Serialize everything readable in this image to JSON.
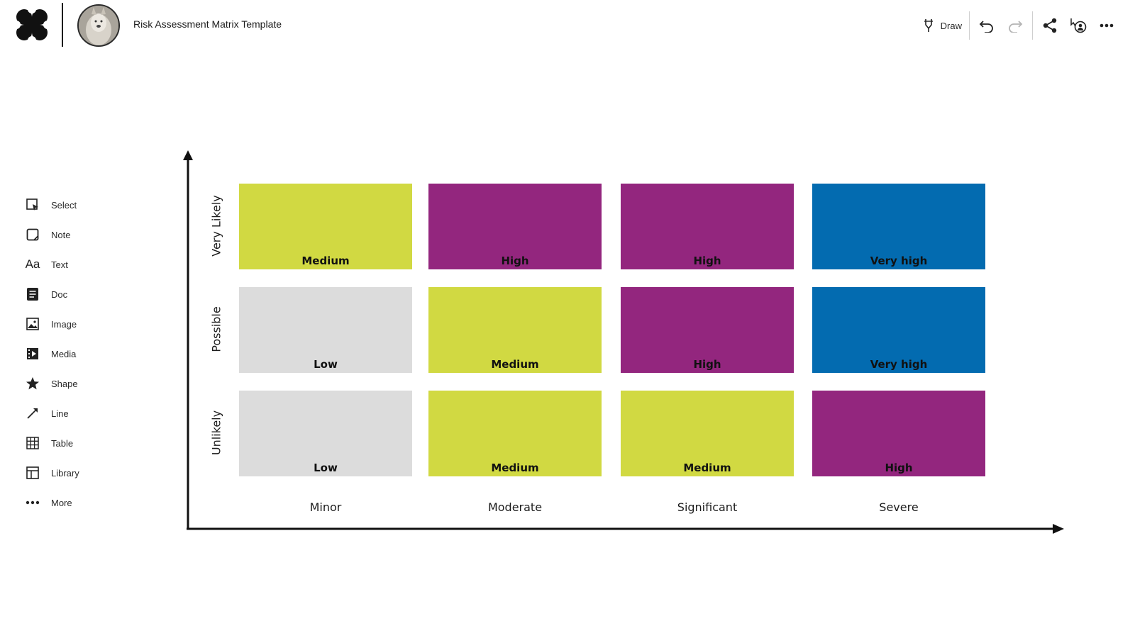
{
  "header": {
    "title": "Risk Assessment Matrix Template",
    "draw_label": "Draw"
  },
  "sidebar": {
    "items": [
      {
        "label": "Select",
        "icon": "select-icon"
      },
      {
        "label": "Note",
        "icon": "note-icon"
      },
      {
        "label": "Text",
        "icon": "text-icon"
      },
      {
        "label": "Doc",
        "icon": "doc-icon"
      },
      {
        "label": "Image",
        "icon": "image-icon"
      },
      {
        "label": "Media",
        "icon": "media-icon"
      },
      {
        "label": "Shape",
        "icon": "star-icon"
      },
      {
        "label": "Line",
        "icon": "line-icon"
      },
      {
        "label": "Table",
        "icon": "table-icon"
      },
      {
        "label": "Library",
        "icon": "library-icon"
      },
      {
        "label": "More",
        "icon": "more-icon"
      }
    ]
  },
  "matrix": {
    "rows": [
      "Very Likely",
      "Possible",
      "Unlikely"
    ],
    "columns": [
      "Minor",
      "Moderate",
      "Significant",
      "Severe"
    ],
    "cells": [
      [
        "Medium",
        "High",
        "High",
        "Very high"
      ],
      [
        "Low",
        "Medium",
        "High",
        "Very high"
      ],
      [
        "Low",
        "Medium",
        "Medium",
        "High"
      ]
    ],
    "colors": {
      "Low": "#dcdcdc",
      "Medium": "#d1d942",
      "High": "#93267e",
      "Very high": "#036bb0"
    }
  }
}
